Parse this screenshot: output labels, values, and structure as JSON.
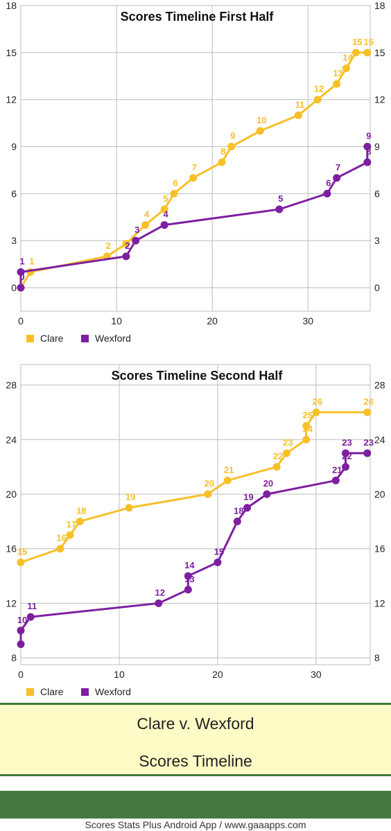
{
  "colors": {
    "clare": "#f6c028",
    "wexford": "#7d1fa0",
    "grid": "#bdbdbd",
    "banner_border": "#3d7a3a",
    "footer_bg": "#447a3f"
  },
  "chart_data": [
    {
      "type": "line",
      "title": "Scores Timeline First Half",
      "xlim": [
        0,
        36.5
      ],
      "ylim": [
        -1.5,
        18
      ],
      "x_ticks": [
        0,
        10,
        20,
        30
      ],
      "y_ticks": [
        0,
        3,
        6,
        9,
        12,
        15,
        18
      ],
      "grid": true,
      "legend_position": "bottom-left",
      "series": [
        {
          "name": "Clare",
          "color": "#f6c028",
          "x": [
            0,
            1,
            9,
            11,
            13,
            15,
            16,
            18,
            21,
            22,
            25,
            29,
            31,
            33,
            34,
            35,
            36.2
          ],
          "y": [
            0,
            1,
            2,
            2.8,
            4,
            5,
            6,
            7,
            8,
            9,
            10,
            11,
            12,
            13,
            14,
            15,
            15
          ],
          "labels": [
            "0",
            "1",
            "2",
            "",
            "4",
            "5",
            "6",
            "7",
            "8",
            "9",
            "10",
            "11",
            "12",
            "13",
            "14",
            "15",
            "15"
          ]
        },
        {
          "name": "Wexford",
          "color": "#7d1fa0",
          "x": [
            0,
            0,
            11,
            12,
            15,
            27,
            32,
            33,
            36.2,
            36.2
          ],
          "y": [
            0,
            1,
            2,
            3,
            4,
            5,
            6,
            7,
            8,
            9
          ],
          "labels": [
            "0",
            "1",
            "2",
            "3",
            "4",
            "5",
            "6",
            "7",
            "8",
            "9"
          ]
        }
      ]
    },
    {
      "type": "line",
      "title": "Scores Timeline Second Half",
      "xlim": [
        0,
        35.5
      ],
      "ylim": [
        7.5,
        29.5
      ],
      "x_ticks": [
        0,
        10,
        20,
        30
      ],
      "y_ticks": [
        8,
        12,
        16,
        20,
        24,
        28
      ],
      "grid": true,
      "legend_position": "bottom-left",
      "series": [
        {
          "name": "Clare",
          "color": "#f6c028",
          "x": [
            0,
            4,
            5,
            6,
            11,
            19,
            21,
            26,
            27,
            29,
            29,
            30,
            35.2
          ],
          "y": [
            15,
            16,
            17,
            18,
            19,
            20,
            21,
            22,
            23,
            24,
            25,
            26,
            26
          ],
          "labels": [
            "15",
            "16",
            "17",
            "18",
            "19",
            "20",
            "21",
            "22",
            "23",
            "24",
            "25",
            "26",
            "26"
          ]
        },
        {
          "name": "Wexford",
          "color": "#7d1fa0",
          "x": [
            0,
            0,
            1,
            14,
            17,
            17,
            20,
            22,
            23,
            25,
            32,
            33,
            33,
            35.2
          ],
          "y": [
            9,
            10,
            11,
            12,
            13,
            14,
            15,
            18,
            19,
            20,
            21,
            22,
            23,
            23
          ],
          "labels": [
            "",
            "10",
            "11",
            "12",
            "13",
            "14",
            "15",
            "18",
            "19",
            "20",
            "21",
            "22",
            "23",
            "23"
          ]
        }
      ]
    }
  ],
  "banner": {
    "line1": "Clare v. Wexford",
    "line2": "Scores Timeline"
  },
  "footer": {
    "text": "Scores Stats Plus Android App / www.gaaapps.com"
  }
}
